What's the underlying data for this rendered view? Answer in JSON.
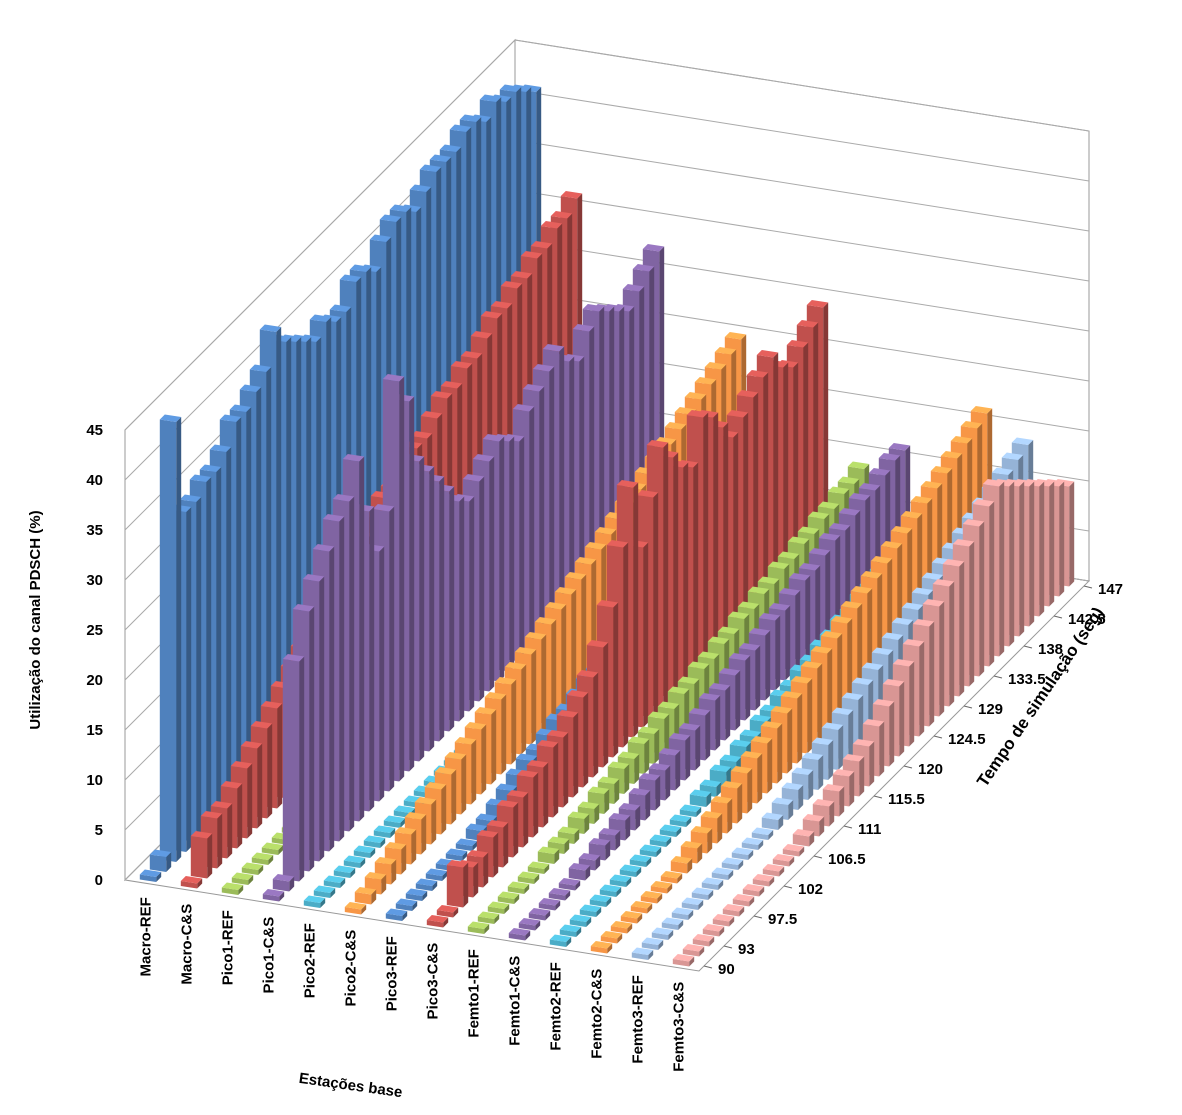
{
  "chart_data": {
    "type": "bar3d",
    "y_label": "Utilização do canal PDSCH (%)",
    "x_label": "Tempo de simulação (seg)",
    "series_label": "Estações base",
    "x": [
      90,
      91.5,
      93,
      94.5,
      96,
      97.5,
      99,
      100.5,
      102,
      103.5,
      105,
      106.5,
      108,
      109.5,
      111,
      112.5,
      114,
      115.5,
      117,
      118.5,
      120,
      121.5,
      123,
      124.5,
      126,
      127.5,
      129,
      130.5,
      132,
      133.5,
      135,
      136.5,
      138,
      139.5,
      141,
      142.5,
      144,
      145.5,
      147
    ],
    "xlim": [
      90,
      147
    ],
    "xticks": [
      90,
      93,
      97.5,
      102,
      106.5,
      111,
      115.5,
      120,
      124.5,
      129,
      133.5,
      138,
      142.5,
      147
    ],
    "ylim": [
      0,
      45
    ],
    "yticks": [
      0,
      5,
      10,
      15,
      20,
      25,
      30,
      35,
      40,
      45
    ],
    "grid": true,
    "series": [
      {
        "name": "Macro-REF",
        "color": "#4f81bd",
        "values": [
          0.5,
          1.5,
          44,
          34,
          34,
          35,
          35,
          36,
          38,
          38,
          39,
          40,
          43,
          41,
          40,
          39,
          38,
          39,
          38,
          38,
          40,
          40,
          39,
          41,
          42,
          42,
          41,
          42,
          43,
          43,
          43,
          44,
          44,
          43,
          44,
          43,
          43,
          42,
          41
        ]
      },
      {
        "name": "Macro-C&S",
        "color": "#c0504d",
        "values": [
          0.5,
          4,
          5,
          5,
          6,
          7,
          8,
          9,
          10,
          11,
          12,
          13,
          14,
          15,
          16,
          17,
          18,
          18,
          19,
          20,
          20,
          21,
          22,
          22,
          23,
          24,
          24,
          25,
          25,
          26,
          27,
          27,
          28,
          28,
          29,
          29,
          30,
          30,
          31
        ]
      },
      {
        "name": "Pico1-REF",
        "color": "#9bbb59",
        "values": [
          0.5,
          0.5,
          0.5,
          0.5,
          0.5,
          0.5,
          0.5,
          0.5,
          0.5,
          0.5,
          0.5,
          0.5,
          0.5,
          1,
          1,
          1.5,
          1.5,
          2,
          2,
          2.5,
          3,
          3,
          3.5,
          4,
          4,
          4.5,
          5,
          5,
          6,
          6,
          7,
          7,
          8,
          8,
          9,
          9,
          10,
          10,
          11
        ]
      },
      {
        "name": "Pico1-C&S",
        "color": "#8064a2",
        "values": [
          0.5,
          1,
          22,
          26,
          28,
          30,
          32,
          33,
          36,
          30,
          25,
          28,
          40,
          37,
          30,
          28,
          26,
          24,
          22,
          21,
          22,
          23,
          24,
          23,
          22,
          24,
          25,
          26,
          27,
          25,
          24,
          26,
          27,
          26,
          25,
          24,
          25,
          26,
          27
        ]
      },
      {
        "name": "Pico2-REF",
        "color": "#4bacc6",
        "values": [
          0.5,
          0.5,
          0.5,
          0.5,
          0.5,
          0.5,
          0.5,
          0.5,
          0.5,
          0.5,
          0.5,
          0.5,
          0.5,
          0.5,
          0.5,
          0.5,
          0.5,
          0.5,
          0.5,
          0.5,
          0.5,
          0.5,
          0.5,
          0.5,
          0.5,
          0.5,
          0.5,
          0.5,
          0.5,
          0.5,
          0.5,
          0.5,
          0.5,
          0.5,
          0.5,
          0.5,
          0.5,
          0.5,
          0.5
        ]
      },
      {
        "name": "Pico2-C&S",
        "color": "#f79646",
        "values": [
          0.5,
          1,
          1.5,
          2,
          2.5,
          3,
          3.5,
          4,
          4.5,
          5,
          5.5,
          6,
          6.5,
          7,
          7.5,
          8,
          8.5,
          9,
          9.5,
          10,
          10.5,
          11,
          11.5,
          12,
          12.5,
          13,
          13.5,
          14,
          14.5,
          15,
          15.5,
          16,
          16.5,
          17,
          17.5,
          18,
          18.5,
          19,
          19.5
        ]
      },
      {
        "name": "Pico3-REF",
        "color": "#4f81bd",
        "values": [
          0.5,
          0.5,
          0.5,
          0.5,
          0.5,
          0.5,
          0.5,
          0.5,
          1,
          1,
          1.5,
          2,
          2.5,
          3,
          3,
          3.5,
          4,
          4,
          4.5,
          5,
          5,
          5.5,
          6,
          6,
          6.5,
          7,
          7,
          7.5,
          8,
          8,
          8.5,
          9,
          9,
          9.5,
          10,
          10,
          10.5,
          11,
          11
        ]
      },
      {
        "name": "Pico3-C&S",
        "color": "#c0504d",
        "values": [
          0.5,
          0.5,
          4,
          3,
          3,
          4,
          4,
          5,
          5,
          6,
          6,
          7,
          7,
          8,
          9,
          10,
          12,
          15,
          20,
          25,
          18,
          22,
          26,
          24,
          22,
          21,
          25,
          24,
          22,
          20,
          21,
          22,
          23,
          24,
          22,
          21,
          22,
          23,
          24
        ]
      },
      {
        "name": "Femto1-REF",
        "color": "#9bbb59",
        "values": [
          0.5,
          0.5,
          0.5,
          0.5,
          0.5,
          0.5,
          0.5,
          1,
          1,
          1,
          1.5,
          1.5,
          2,
          2,
          2.5,
          2.5,
          3,
          3,
          3.5,
          3.5,
          4,
          4,
          4.5,
          4.5,
          5,
          5,
          5.5,
          5.5,
          6,
          6,
          6.5,
          6.5,
          7,
          7,
          7.5,
          7.5,
          8,
          8,
          8.5
        ]
      },
      {
        "name": "Femto1-C&S",
        "color": "#8064a2",
        "values": [
          0.5,
          0.5,
          0.5,
          0.5,
          0.5,
          0.5,
          1,
          1,
          1.5,
          1.5,
          2,
          2,
          2.5,
          3,
          3,
          3.5,
          4,
          4,
          4.5,
          5,
          5,
          5.5,
          6,
          6,
          6.5,
          7,
          7,
          7.5,
          8,
          8,
          8.5,
          9,
          9,
          9.5,
          10,
          10,
          10.5,
          11,
          11
        ]
      },
      {
        "name": "Femto2-REF",
        "color": "#4bacc6",
        "values": [
          0.5,
          0.5,
          0.5,
          0.5,
          0.5,
          0.5,
          0.5,
          0.5,
          0.5,
          0.5,
          0.5,
          0.5,
          0.5,
          0.5,
          1,
          1,
          1.5,
          1.5,
          2,
          2,
          2.5,
          2.5,
          3,
          3,
          3.5,
          3.5,
          4,
          4,
          4.5,
          4.5,
          5,
          5,
          5.5,
          5.5,
          6,
          6,
          6.5,
          6.5,
          7
        ]
      },
      {
        "name": "Femto2-C&S",
        "color": "#f79646",
        "values": [
          0.5,
          0.5,
          0.5,
          0.5,
          0.5,
          0.5,
          0.5,
          0.5,
          1,
          1.5,
          2,
          2.5,
          3,
          3.5,
          4,
          4.5,
          5,
          5.5,
          6,
          6.5,
          7,
          7.5,
          8,
          8.5,
          9,
          9.5,
          10,
          10.5,
          11,
          11.5,
          12,
          12.5,
          13,
          13.5,
          14,
          14.5,
          15,
          15.5,
          16
        ]
      },
      {
        "name": "Femto3-REF",
        "color": "#95b3d7",
        "values": [
          0.5,
          0.5,
          0.5,
          0.5,
          0.5,
          0.5,
          0.5,
          0.5,
          0.5,
          0.5,
          0.5,
          0.5,
          0.5,
          1,
          1.5,
          2,
          2.5,
          3,
          3.5,
          4,
          4.5,
          5,
          5.5,
          6,
          6.5,
          7,
          7.5,
          8,
          8.5,
          9,
          9.5,
          10,
          10.5,
          11,
          11.5,
          12,
          12.5,
          13,
          13.5
        ]
      },
      {
        "name": "Femto3-C&S",
        "color": "#d99694",
        "values": [
          0.5,
          0.5,
          0.5,
          0.5,
          0.5,
          0.5,
          0.5,
          0.5,
          0.5,
          0.5,
          0.5,
          0.5,
          1,
          1.5,
          2,
          2.5,
          3,
          3.5,
          4,
          5,
          6,
          7,
          8,
          9,
          10,
          11,
          12,
          13,
          14,
          15,
          16,
          17,
          16,
          15,
          14,
          13,
          12,
          11,
          10
        ]
      }
    ]
  }
}
